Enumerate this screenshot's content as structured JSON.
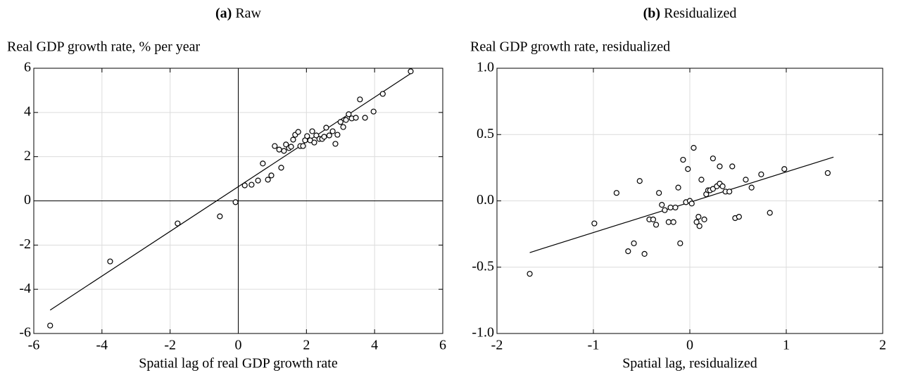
{
  "chart_data": [
    {
      "type": "scatter",
      "label": "(a)",
      "title": "Raw",
      "ylabel": "Real GDP growth rate, % per year",
      "xlabel": "Spatial lag of real GDP growth rate",
      "xlim": [
        -6,
        6
      ],
      "ylim": [
        -6,
        6
      ],
      "xticks": [
        -6,
        -4,
        -2,
        0,
        2,
        4,
        6
      ],
      "yticks": [
        -6,
        -4,
        -2,
        0,
        2,
        4,
        6
      ],
      "grid": true,
      "zero_lines": true,
      "color": "#000000",
      "x": [
        -5.52,
        -3.76,
        -1.78,
        -0.54,
        -0.08,
        0.19,
        0.39,
        0.58,
        0.72,
        0.87,
        0.97,
        1.07,
        1.2,
        1.26,
        1.34,
        1.4,
        1.49,
        1.55,
        1.61,
        1.67,
        1.76,
        1.82,
        1.9,
        1.96,
        2.02,
        2.11,
        2.17,
        2.23,
        2.29,
        2.38,
        2.46,
        2.52,
        2.58,
        2.67,
        2.77,
        2.85,
        2.91,
        3.0,
        3.08,
        3.16,
        3.24,
        3.33,
        3.45,
        3.57,
        3.72,
        3.97,
        4.24,
        5.06
      ],
      "values": [
        -5.64,
        -2.74,
        -1.02,
        -0.7,
        -0.06,
        0.7,
        0.73,
        0.92,
        1.69,
        0.96,
        1.15,
        2.48,
        2.32,
        1.5,
        2.26,
        2.55,
        2.39,
        2.45,
        2.77,
        2.99,
        3.12,
        2.48,
        2.48,
        2.74,
        2.93,
        2.74,
        3.15,
        2.64,
        2.96,
        2.8,
        2.8,
        2.9,
        3.31,
        2.96,
        3.15,
        2.58,
        2.99,
        3.57,
        3.34,
        3.66,
        3.92,
        3.73,
        3.76,
        4.59,
        3.76,
        4.04,
        4.84,
        5.86
      ],
      "fit_line": {
        "x": [
          -5.52,
          5.06
        ],
        "y": [
          -4.94,
          5.76
        ]
      }
    },
    {
      "type": "scatter",
      "label": "(b)",
      "title": "Residualized",
      "ylabel": "Real GDP growth rate, residualized",
      "xlabel": "Spatial lag, residualized",
      "xlim": [
        -2,
        2
      ],
      "ylim": [
        -1,
        1
      ],
      "xticks": [
        -2,
        -1,
        0,
        1,
        2
      ],
      "yticks": [
        {
          "value": -1,
          "label": "-1.0"
        },
        {
          "value": -0.5,
          "label": "-0.5"
        },
        {
          "value": 0,
          "label": "0.0"
        },
        {
          "value": 0.5,
          "label": "0.5"
        },
        {
          "value": 1,
          "label": "1.0"
        }
      ],
      "grid": true,
      "zero_lines": false,
      "color": "#000000",
      "x": [
        -1.66,
        -0.99,
        -0.76,
        -0.64,
        -0.58,
        -0.52,
        -0.47,
        -0.42,
        -0.38,
        -0.35,
        -0.32,
        -0.29,
        -0.26,
        -0.22,
        -0.2,
        -0.17,
        -0.15,
        -0.12,
        -0.1,
        -0.07,
        -0.04,
        -0.02,
        0.0,
        0.02,
        0.04,
        0.07,
        0.09,
        0.1,
        0.12,
        0.15,
        0.17,
        0.19,
        0.21,
        0.24,
        0.24,
        0.28,
        0.31,
        0.31,
        0.34,
        0.37,
        0.41,
        0.44,
        0.47,
        0.51,
        0.58,
        0.64,
        0.74,
        0.83,
        0.98,
        1.43
      ],
      "values": [
        -0.55,
        -0.17,
        0.06,
        -0.38,
        -0.32,
        0.15,
        -0.4,
        -0.14,
        -0.14,
        -0.18,
        0.06,
        -0.03,
        -0.07,
        -0.16,
        -0.05,
        -0.16,
        -0.05,
        0.1,
        -0.32,
        0.31,
        -0.01,
        0.24,
        0.0,
        -0.02,
        0.4,
        -0.16,
        -0.12,
        -0.19,
        0.16,
        -0.14,
        0.05,
        0.08,
        0.08,
        0.09,
        0.32,
        0.11,
        0.13,
        0.26,
        0.11,
        0.07,
        0.07,
        0.26,
        -0.13,
        -0.12,
        0.16,
        0.1,
        0.2,
        -0.09,
        0.24,
        0.21
      ],
      "fit_line": {
        "x": [
          -1.66,
          1.49
        ],
        "y": [
          -0.39,
          0.33
        ]
      }
    }
  ]
}
